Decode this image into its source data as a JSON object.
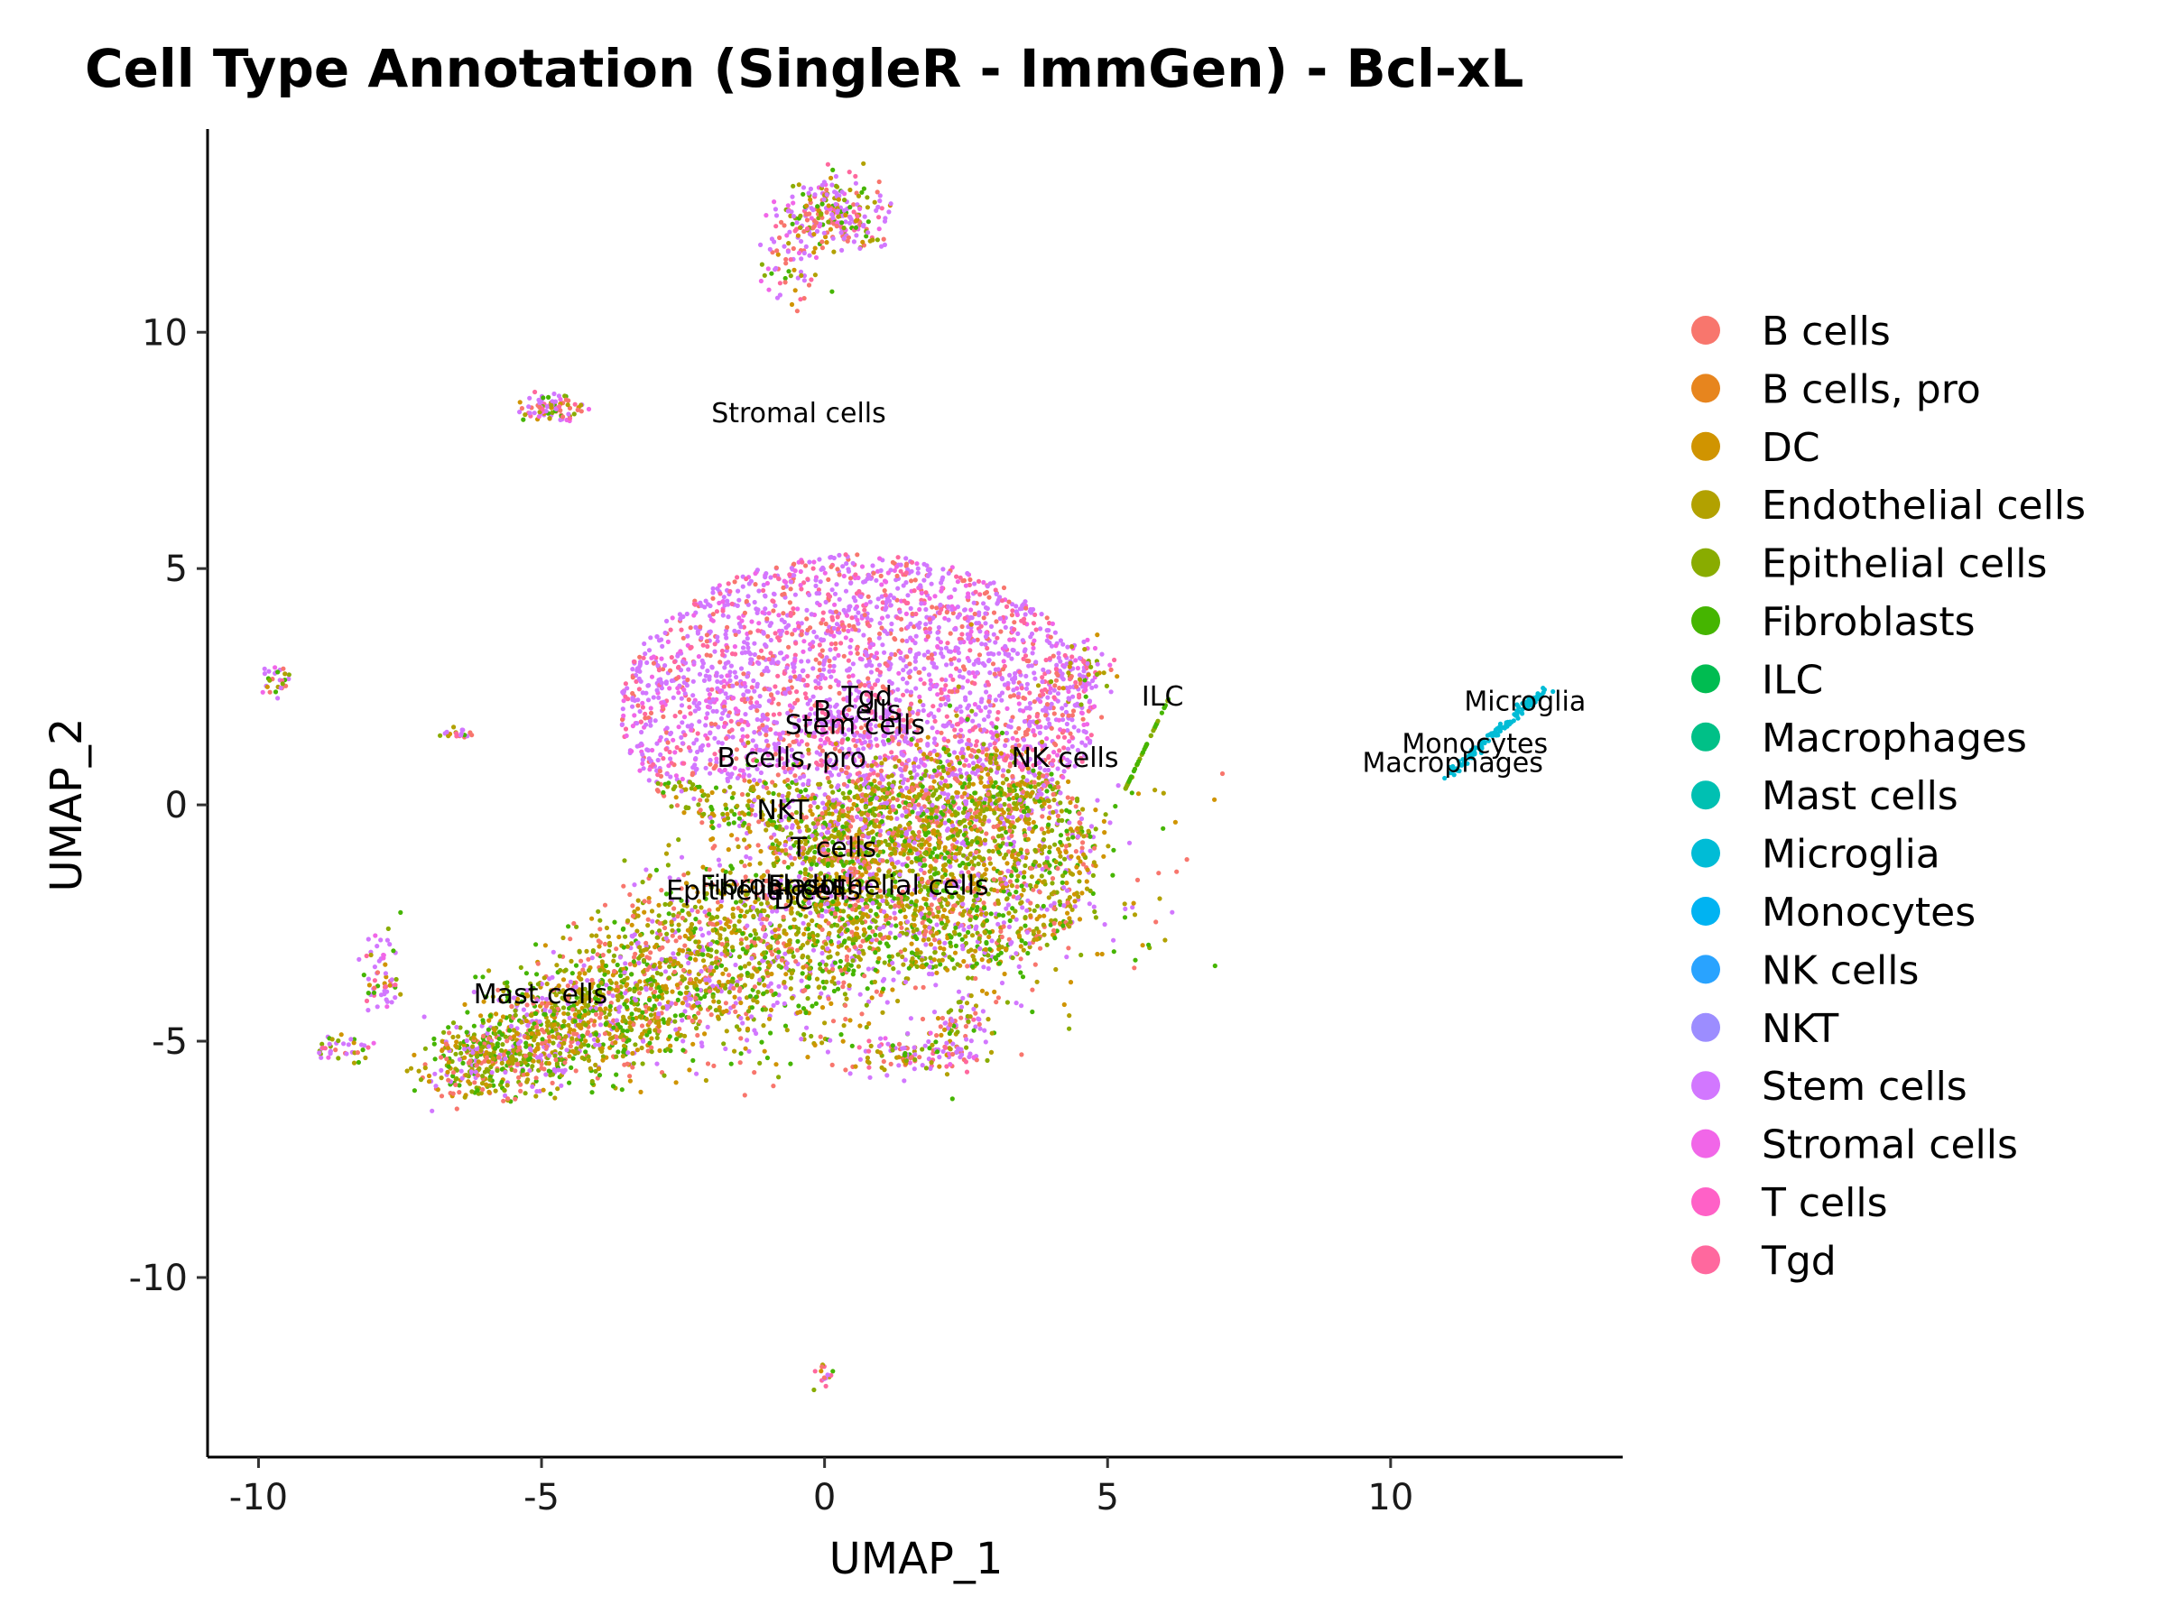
{
  "chart_data": {
    "type": "scatter",
    "title": "Cell Type Annotation (SingleR - ImmGen) - Bcl-xL",
    "xlabel": "UMAP_1",
    "ylabel": "UMAP_2",
    "xlim": [
      -10.9,
      14.1
    ],
    "ylim": [
      -13.8,
      14.3
    ],
    "x_ticks": [
      -10,
      -5,
      0,
      5,
      10
    ],
    "x_tick_labels": [
      "-10",
      "-5",
      "0",
      "5",
      "10"
    ],
    "y_ticks": [
      -10,
      -5,
      0,
      5,
      10
    ],
    "y_tick_labels": [
      "-10",
      "-5",
      "0",
      "5",
      "10"
    ],
    "grid": false,
    "legend_position": "right",
    "series": [
      {
        "name": "B cells",
        "color": "#F8766D"
      },
      {
        "name": "B cells, pro",
        "color": "#E7851E"
      },
      {
        "name": "DC",
        "color": "#D09400"
      },
      {
        "name": "Endothelial cells",
        "color": "#B2A100"
      },
      {
        "name": "Epithelial cells",
        "color": "#89AC00"
      },
      {
        "name": "Fibroblasts",
        "color": "#45B500"
      },
      {
        "name": "ILC",
        "color": "#00BC51"
      },
      {
        "name": "Macrophages",
        "color": "#00C087"
      },
      {
        "name": "Mast cells",
        "color": "#00C0B2"
      },
      {
        "name": "Microglia",
        "color": "#00BCD6"
      },
      {
        "name": "Monocytes",
        "color": "#00B3F2"
      },
      {
        "name": "NK cells",
        "color": "#29A3FF"
      },
      {
        "name": "NKT",
        "color": "#9C8DFF"
      },
      {
        "name": "Stem cells",
        "color": "#D277FF"
      },
      {
        "name": "Stromal cells",
        "color": "#F166E8"
      },
      {
        "name": "T cells",
        "color": "#FF61C7"
      },
      {
        "name": "Tgd",
        "color": "#FF689E"
      }
    ],
    "cluster_labels": [
      {
        "text": "Stromal cells",
        "x": -2.0,
        "y": 8.1
      },
      {
        "text": "Tgd",
        "x": 0.3,
        "y": 2.1
      },
      {
        "text": "B cells",
        "x": -0.2,
        "y": 1.8
      },
      {
        "text": "Stem cells",
        "x": -0.7,
        "y": 1.5
      },
      {
        "text": "ILC",
        "x": 5.6,
        "y": 2.1
      },
      {
        "text": "B cells, pro",
        "x": -1.9,
        "y": 0.8
      },
      {
        "text": "NK cells",
        "x": 3.3,
        "y": 0.8
      },
      {
        "text": "Microglia",
        "x": 11.3,
        "y": 2.0
      },
      {
        "text": "Monocytes",
        "x": 10.2,
        "y": 1.1
      },
      {
        "text": "Macrophages",
        "x": 9.5,
        "y": 0.7
      },
      {
        "text": "NKT",
        "x": -1.2,
        "y": -0.3
      },
      {
        "text": "T cells",
        "x": -0.6,
        "y": -1.1
      },
      {
        "text": "Fibroblasts",
        "x": -2.2,
        "y": -1.9
      },
      {
        "text": "Endothelial cells",
        "x": -1.0,
        "y": -1.9
      },
      {
        "text": "Epithelial cells",
        "x": -2.8,
        "y": -2.0
      },
      {
        "text": "DC",
        "x": -0.9,
        "y": -2.2
      },
      {
        "text": "Mast cells",
        "x": -6.2,
        "y": -4.2
      }
    ]
  }
}
